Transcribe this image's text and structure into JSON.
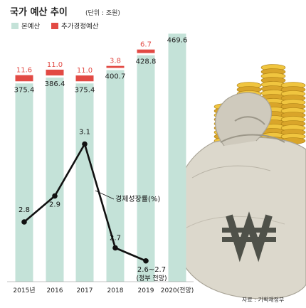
{
  "title": "국가 예산 추이",
  "unit": "(단위 : 조원)",
  "source": "자료 : 기획재정부",
  "colors": {
    "main_budget": "#c4e2d8",
    "supplementary": "#e24a44",
    "line": "#111111"
  },
  "chart_data": [
    {
      "type": "bar",
      "title": "국가 예산 추이",
      "unit": "(단위 : 조원)",
      "categories": [
        "2015년",
        "2016",
        "2017",
        "2018",
        "2019",
        "2020(전망)"
      ],
      "series": [
        {
          "name": "본예산",
          "values": [
            375.4,
            386.4,
            375.4,
            400.7,
            428.8,
            469.6
          ]
        },
        {
          "name": "추가경정예산",
          "values": [
            11.6,
            11.0,
            11.0,
            3.8,
            6.7,
            null
          ]
        }
      ],
      "legend": "top-left",
      "grid": false
    },
    {
      "type": "line",
      "series": [
        {
          "name": "경제성장률(%)",
          "values": [
            2.8,
            2.9,
            3.1,
            2.7,
            2.65,
            null
          ]
        }
      ],
      "point_labels": [
        "2.8",
        "2.9",
        "3.1",
        "2.7",
        "2.6~2.7",
        ""
      ],
      "notes": [
        "(정부 전망)"
      ]
    }
  ]
}
